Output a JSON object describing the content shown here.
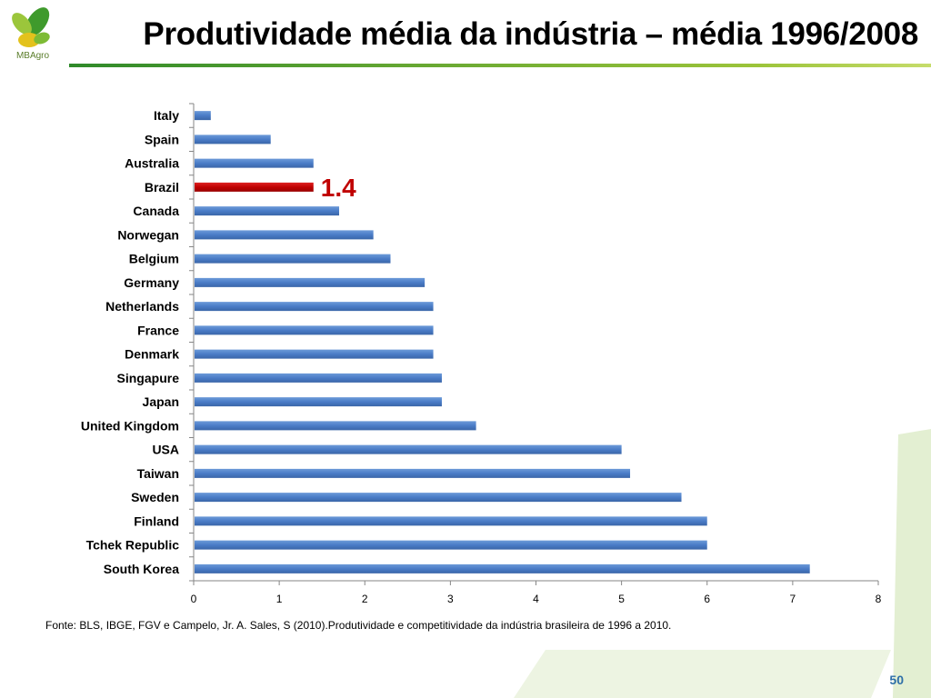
{
  "header": {
    "logo_text": "MBAgro",
    "title": "Produtividade média da indústria – média 1996/2008"
  },
  "colors": {
    "bar": "#4a7cc7",
    "highlight_bar": "#c00000",
    "highlight_label": "#c00000",
    "rule_green": "#2f8a2a",
    "page_number": "#2e6fa8"
  },
  "chart_data": {
    "type": "bar",
    "orientation": "horizontal",
    "title": "",
    "xlabel": "",
    "ylabel": "",
    "xlim": [
      0,
      8
    ],
    "x_ticks": [
      0,
      1,
      2,
      3,
      4,
      5,
      6,
      7,
      8
    ],
    "grid": false,
    "legend": "none",
    "categories": [
      "Italy",
      "Spain",
      "Australia",
      "Brazil",
      "Canada",
      "Norwegan",
      "Belgium",
      "Germany",
      "Netherlands",
      "France",
      "Denmark",
      "Singapure",
      "Japan",
      "United Kingdom",
      "USA",
      "Taiwan",
      "Sweden",
      "Finland",
      "Tchek Republic",
      "South Korea"
    ],
    "values": [
      0.2,
      0.9,
      1.4,
      1.4,
      1.7,
      2.1,
      2.3,
      2.7,
      2.8,
      2.8,
      2.8,
      2.9,
      2.9,
      3.3,
      5.0,
      5.1,
      5.7,
      6.0,
      6.0,
      7.2
    ],
    "highlight": {
      "category": "Brazil",
      "label": "1.4"
    }
  },
  "footer": {
    "source": "Fonte: BLS, IBGE, FGV e Campelo, Jr. A. Sales, S (2010).Produtividade e competitividade da indústria brasileira de 1996 a 2010.",
    "page_number": "50"
  }
}
